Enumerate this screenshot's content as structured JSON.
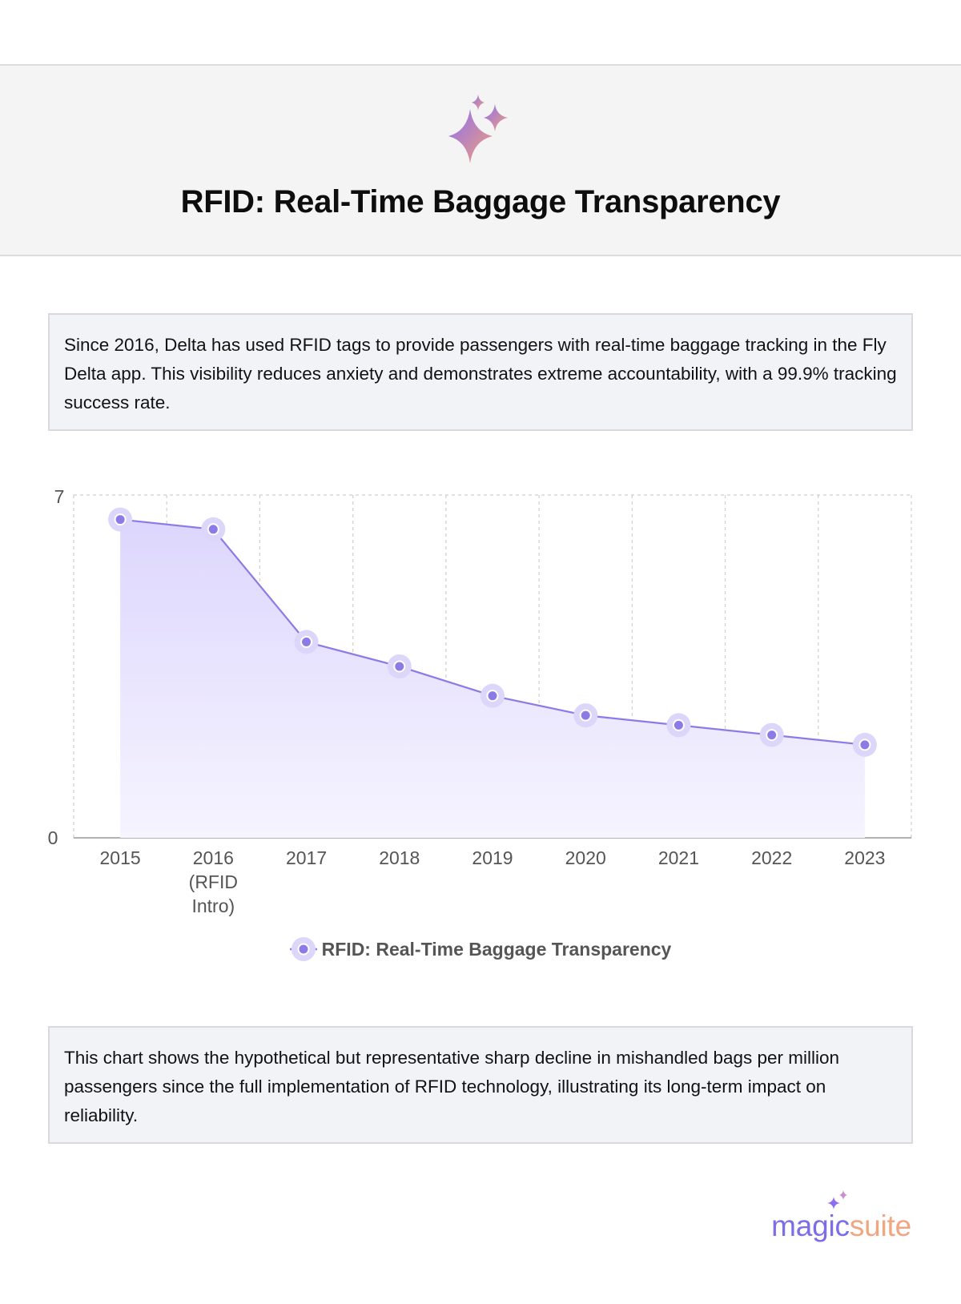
{
  "header": {
    "title": "RFID: Real-Time Baggage Transparency",
    "icon": "sparkles-icon"
  },
  "intro": {
    "text": "Since 2016, Delta has used RFID tags to provide passengers with real-time baggage tracking in the Fly Delta app. This visibility reduces anxiety and demonstrates extreme accountability, with a 99.9% tracking success rate."
  },
  "chart_data": {
    "type": "area",
    "title": "",
    "xlabel": "",
    "ylabel": "",
    "categories": [
      "2015",
      "2016 (RFID Intro)",
      "2017",
      "2018",
      "2019",
      "2020",
      "2021",
      "2022",
      "2023"
    ],
    "tick_labels": [
      [
        "2015"
      ],
      [
        "2016",
        "(RFID",
        "Intro)"
      ],
      [
        "2017"
      ],
      [
        "2018"
      ],
      [
        "2019"
      ],
      [
        "2020"
      ],
      [
        "2021"
      ],
      [
        "2022"
      ],
      [
        "2023"
      ]
    ],
    "series": [
      {
        "name": "RFID: Real-Time Baggage Transparency",
        "values": [
          6.5,
          6.3,
          4.0,
          3.5,
          2.9,
          2.5,
          2.3,
          2.1,
          1.9
        ]
      }
    ],
    "ylim": [
      0,
      7
    ],
    "y_ticks": [
      "0",
      "7"
    ],
    "grid": true,
    "legend": "bottom-center",
    "colors": {
      "line": "#8b7be6",
      "point": "#8b7be6",
      "halo": "#dcd6fb",
      "fill_top": "#ddd6fd",
      "fill_bottom": "#f6f4ff",
      "grid": "#cfcfcf",
      "axis": "#999999"
    }
  },
  "footer_note": {
    "text": "This chart shows the hypothetical but representative sharp decline in mishandled bags per million passengers since the full implementation of RFID technology, illustrating its long-term impact on reliability."
  },
  "brand": {
    "part1": "magic",
    "part2": "suite",
    "color1": "#7c6ee6",
    "color2": "#f2a581"
  }
}
